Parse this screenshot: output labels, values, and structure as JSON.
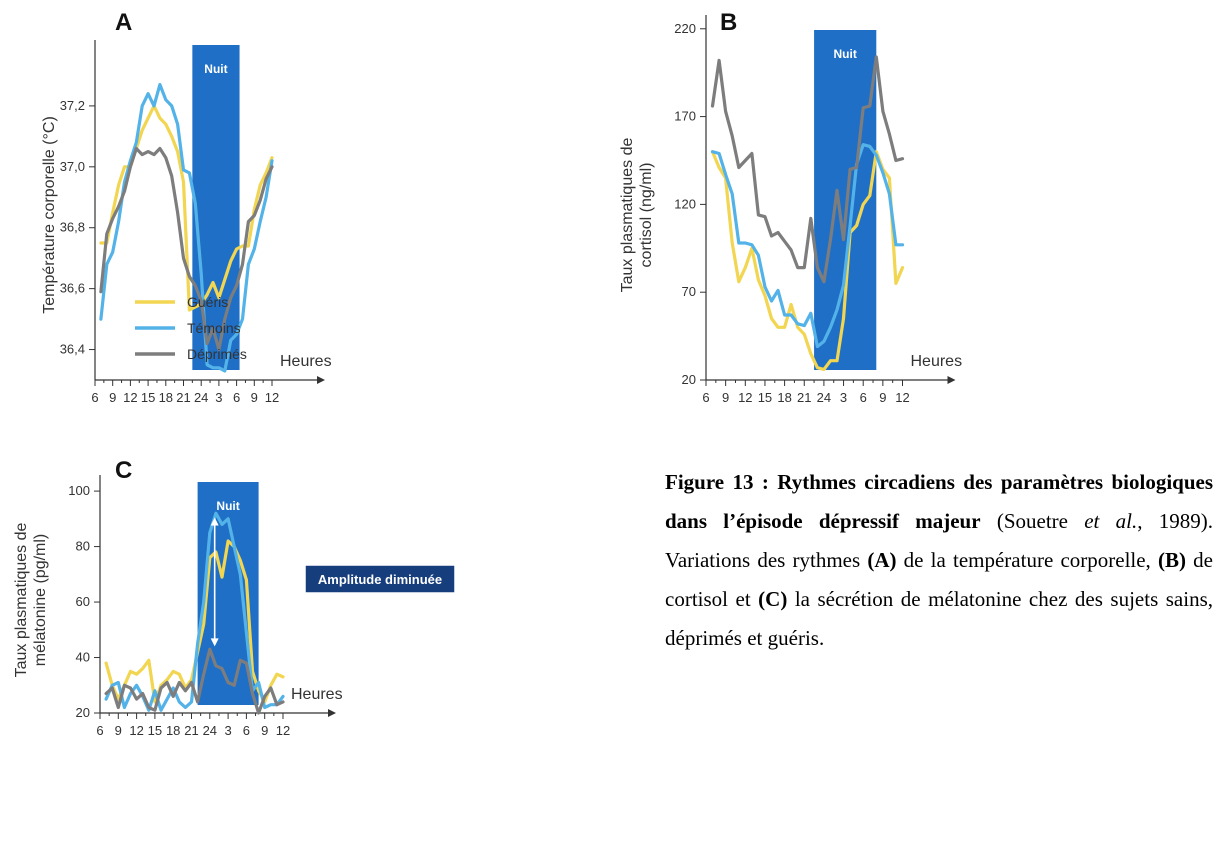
{
  "colors": {
    "night": "#1f6fc6",
    "gueris": "#f2d550",
    "temoins": "#53b3e8",
    "deprimes": "#7d7d7d",
    "axis": "#333333"
  },
  "chart_data": [
    {
      "type": "line",
      "panel_label": "A",
      "ylabel": "Température corporelle (°C)",
      "xlabel": "Heures",
      "xticks": [
        "6",
        "9",
        "12",
        "15",
        "18",
        "21",
        "24",
        "3",
        "6",
        "9",
        "12"
      ],
      "xlim": [
        6,
        36
      ],
      "yticks": [
        "36,4",
        "36,6",
        "36,8",
        "37,0",
        "37,2"
      ],
      "ylim": [
        36.3,
        37.4
      ],
      "night_label": "Nuit",
      "night_range": [
        22.5,
        30.5
      ],
      "legend": [
        "Guéris",
        "Témoins",
        "Déprimés"
      ],
      "x": [
        7,
        8,
        9,
        10,
        11,
        12,
        13,
        14,
        15,
        16,
        17,
        18,
        19,
        20,
        21,
        22,
        23,
        24,
        25,
        26,
        27,
        28,
        29,
        30,
        31,
        32,
        33,
        34,
        35,
        36
      ],
      "series": [
        {
          "name": "Guéris",
          "values": [
            36.75,
            36.75,
            36.85,
            36.94,
            37.0,
            37.0,
            37.06,
            37.12,
            37.16,
            37.2,
            37.16,
            37.14,
            37.1,
            37.05,
            36.95,
            36.53,
            36.54,
            36.55,
            36.58,
            36.62,
            36.57,
            36.63,
            36.69,
            36.73,
            36.74,
            36.74,
            36.86,
            36.94,
            36.98,
            37.03
          ]
        },
        {
          "name": "Témoins",
          "values": [
            36.5,
            36.68,
            36.72,
            36.82,
            36.95,
            37.02,
            37.08,
            37.2,
            37.24,
            37.2,
            37.27,
            37.22,
            37.2,
            37.14,
            36.99,
            36.98,
            36.88,
            36.65,
            36.35,
            36.34,
            36.34,
            36.33,
            36.43,
            36.45,
            36.5,
            36.68,
            36.73,
            36.82,
            36.9,
            37.02
          ]
        },
        {
          "name": "Déprimés",
          "values": [
            36.59,
            36.78,
            36.83,
            36.87,
            36.92,
            37.0,
            37.06,
            37.04,
            37.05,
            37.04,
            37.06,
            37.03,
            36.97,
            36.85,
            36.7,
            36.64,
            36.61,
            36.56,
            36.42,
            36.47,
            36.4,
            36.5,
            36.57,
            36.61,
            36.68,
            36.82,
            36.84,
            36.89,
            36.96,
            37.0
          ]
        }
      ]
    },
    {
      "type": "line",
      "panel_label": "B",
      "ylabel": "Taux plasmatiques de cortisol (ng/ml)",
      "xlabel": "Heures",
      "xticks": [
        "6",
        "9",
        "12",
        "15",
        "18",
        "21",
        "24",
        "3",
        "6",
        "9",
        "12"
      ],
      "xlim": [
        6,
        36
      ],
      "yticks": [
        "20",
        "70",
        "120",
        "170",
        "220"
      ],
      "ylim": [
        20,
        225
      ],
      "night_label": "Nuit",
      "night_range": [
        22.5,
        32
      ],
      "x": [
        7,
        8,
        9,
        10,
        11,
        12,
        13,
        14,
        15,
        16,
        17,
        18,
        19,
        20,
        21,
        22,
        23,
        24,
        25,
        26,
        27,
        28,
        29,
        30,
        31,
        32,
        33,
        34,
        35,
        36
      ],
      "series": [
        {
          "name": "Guéris",
          "values": [
            150,
            141,
            135,
            98,
            76,
            84,
            95,
            77,
            68,
            55,
            50,
            50,
            63,
            50,
            46,
            35,
            27,
            26,
            31,
            31,
            55,
            104,
            108,
            120,
            125,
            150,
            140,
            135,
            75,
            84
          ]
        },
        {
          "name": "Témoins",
          "values": [
            150,
            149,
            137,
            126,
            98,
            98,
            97,
            91,
            73,
            65,
            71,
            57,
            57,
            52,
            51,
            58,
            39,
            42,
            50,
            60,
            74,
            108,
            143,
            154,
            153,
            148,
            138,
            126,
            97,
            97
          ]
        },
        {
          "name": "Déprimés",
          "values": [
            176,
            202,
            173,
            159,
            141,
            145,
            149,
            114,
            113,
            102,
            104,
            99,
            94,
            84,
            84,
            112,
            84,
            76,
            100,
            128,
            100,
            140,
            141,
            175,
            176,
            204,
            173,
            160,
            145,
            146
          ]
        }
      ]
    },
    {
      "type": "line",
      "panel_label": "C",
      "ylabel": "Taux plasmatiques de mélatonine (pg/ml)",
      "xlabel": "Heures",
      "xticks": [
        "6",
        "9",
        "12",
        "15",
        "18",
        "21",
        "24",
        "3",
        "6",
        "9",
        "12"
      ],
      "xlim": [
        6,
        36
      ],
      "yticks": [
        "20",
        "40",
        "60",
        "80",
        "100"
      ],
      "ylim": [
        20,
        104
      ],
      "night_label": "Nuit",
      "night_range": [
        22,
        32
      ],
      "annotation": "Amplitude diminuée",
      "x": [
        7,
        8,
        9,
        10,
        11,
        12,
        13,
        14,
        15,
        16,
        17,
        18,
        19,
        20,
        21,
        22,
        23,
        24,
        25,
        26,
        27,
        28,
        29,
        30,
        31,
        32,
        33,
        34,
        35,
        36
      ],
      "series": [
        {
          "name": "Guéris",
          "values": [
            38,
            30,
            25,
            30,
            35,
            34,
            36,
            39,
            24,
            30,
            32,
            35,
            34,
            29,
            32,
            42,
            52,
            76,
            78,
            69,
            82,
            80,
            75,
            68,
            35,
            28,
            24,
            30,
            34,
            33
          ]
        },
        {
          "name": "Témoins",
          "values": [
            25,
            30,
            31,
            22,
            27,
            30,
            26,
            21,
            28,
            21,
            25,
            29,
            24,
            22,
            24,
            45,
            60,
            85,
            92,
            88,
            90,
            80,
            70,
            49,
            28,
            31,
            22,
            23,
            23,
            26
          ]
        },
        {
          "name": "Déprimés",
          "values": [
            27,
            29,
            22,
            30,
            29,
            25,
            27,
            22,
            21,
            29,
            31,
            26,
            31,
            28,
            31,
            24,
            34,
            43,
            37,
            36,
            31,
            30,
            39,
            38,
            27,
            20,
            26,
            29,
            23,
            24
          ]
        }
      ]
    }
  ],
  "caption": {
    "figure": "Figure 13 :",
    "title": "Rythmes circadiens des paramètres biologiques dans l’épisode dépressif majeur",
    "citation_open": "(Souetre ",
    "citation_etal": "et al.",
    "citation_close": ", 1989). Variations des rythmes ",
    "a": "(A)",
    "t1": " de la température corporelle, ",
    "b": "(B)",
    "t2": " de cortisol et ",
    "c": "(C)",
    "t3": " la sécrétion de mélatonine chez des sujets sains, déprimés et guéris."
  }
}
